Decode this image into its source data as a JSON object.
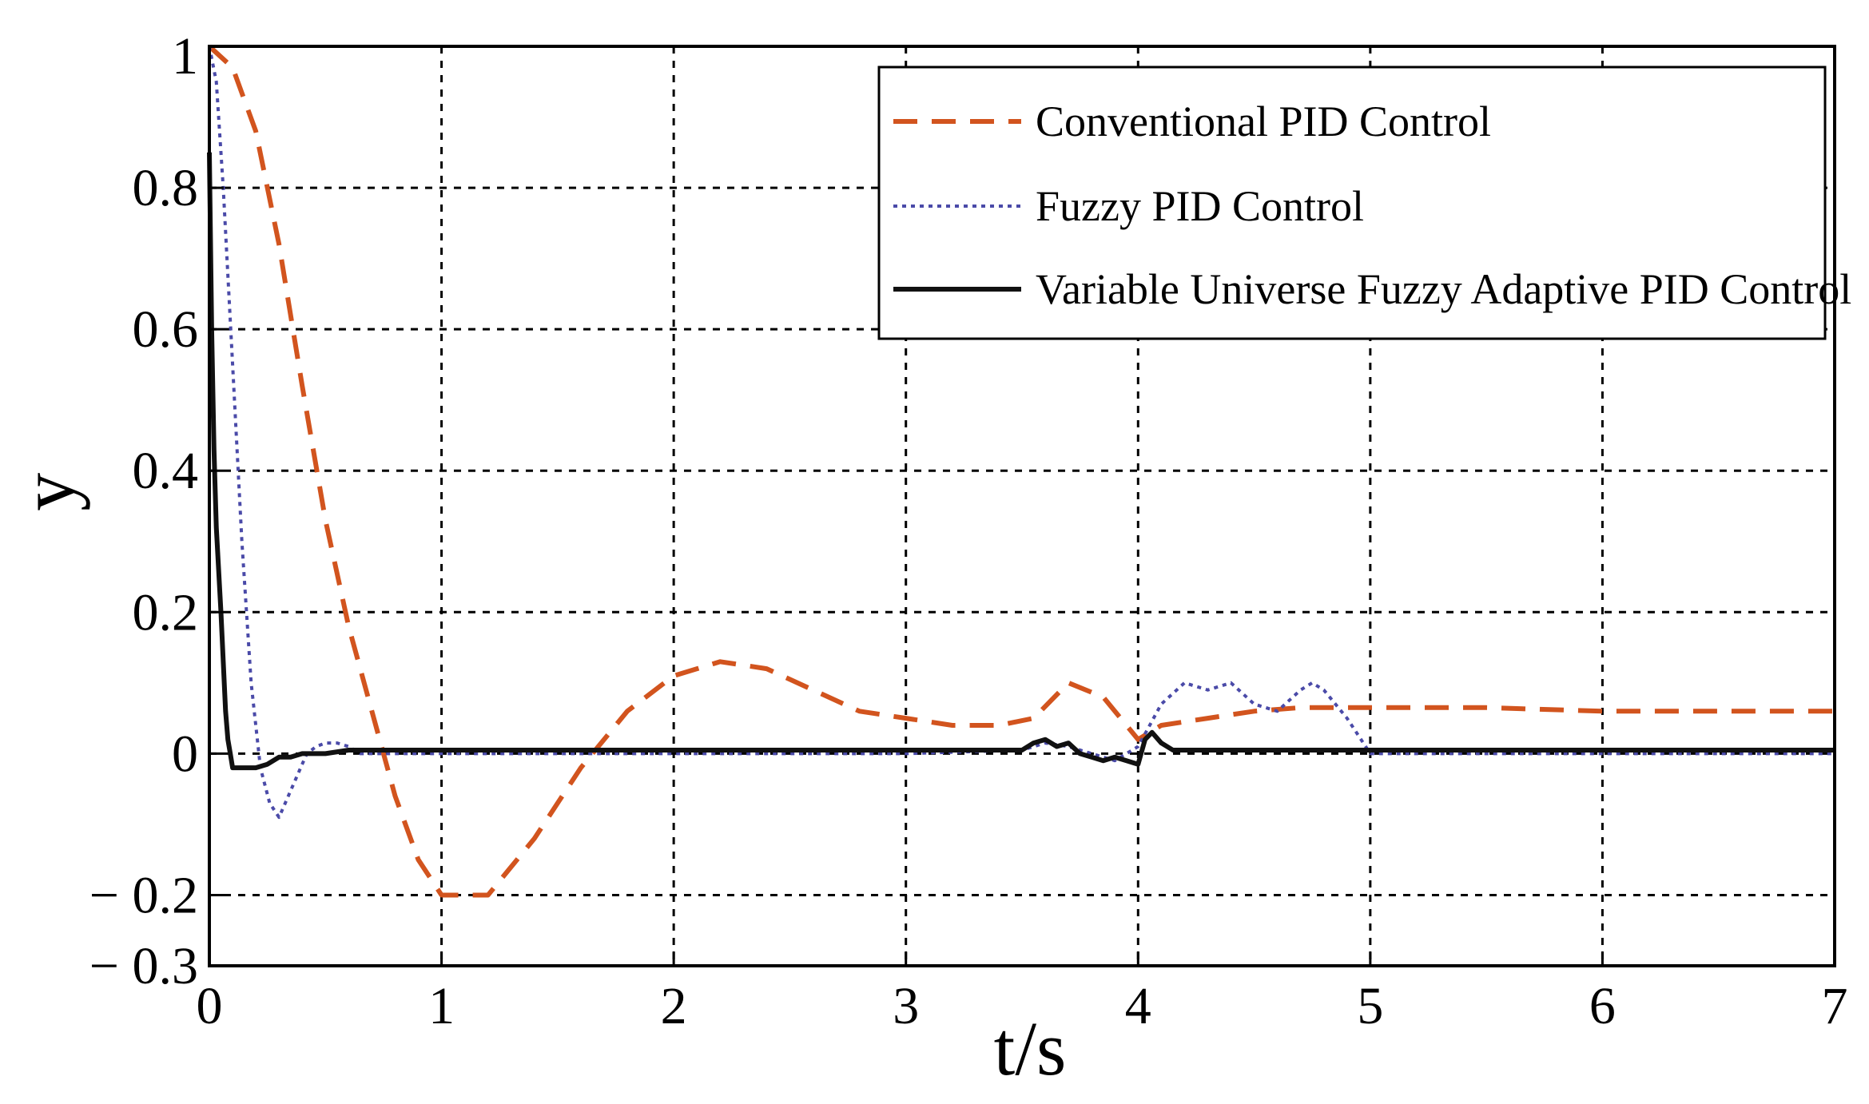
{
  "chart_data": {
    "type": "line",
    "xlabel": "t/s",
    "ylabel": "y",
    "xlim": [
      0,
      7
    ],
    "ylim": [
      -0.3,
      1
    ],
    "xticks": [
      0,
      1,
      2,
      3,
      4,
      5,
      6,
      7
    ],
    "xtick_labels": [
      "0",
      "1",
      "2",
      "3",
      "4",
      "5",
      "6",
      "7"
    ],
    "yticks": [
      -0.3,
      -0.2,
      0,
      0.2,
      0.4,
      0.6,
      0.8,
      1
    ],
    "ytick_labels": [
      "− 0.3",
      "− 0.2",
      "0",
      "0.2",
      "0.4",
      "0.6",
      "0.8",
      "1"
    ],
    "grid": true,
    "legend_position": "top-right",
    "series": [
      {
        "name": "Conventional PID Control",
        "color": "#d2541e",
        "style": "dashed",
        "x": [
          0,
          0.1,
          0.2,
          0.3,
          0.4,
          0.5,
          0.6,
          0.7,
          0.8,
          0.9,
          1.0,
          1.1,
          1.2,
          1.4,
          1.6,
          1.8,
          2.0,
          2.2,
          2.4,
          2.6,
          2.8,
          3.0,
          3.2,
          3.4,
          3.55,
          3.7,
          3.85,
          4.0,
          4.1,
          4.3,
          4.5,
          4.7,
          5.0,
          5.5,
          6.0,
          6.5,
          7.0
        ],
        "values": [
          1.0,
          0.97,
          0.88,
          0.72,
          0.52,
          0.33,
          0.18,
          0.06,
          -0.06,
          -0.15,
          -0.2,
          -0.2,
          -0.2,
          -0.12,
          -0.02,
          0.06,
          0.11,
          0.13,
          0.12,
          0.09,
          0.06,
          0.05,
          0.04,
          0.04,
          0.05,
          0.1,
          0.08,
          0.02,
          0.04,
          0.05,
          0.06,
          0.065,
          0.065,
          0.065,
          0.06,
          0.06,
          0.06
        ]
      },
      {
        "name": "Fuzzy PID Control",
        "color": "#4a4aa8",
        "style": "dotted",
        "x": [
          0,
          0.03,
          0.06,
          0.1,
          0.14,
          0.18,
          0.22,
          0.26,
          0.3,
          0.34,
          0.38,
          0.42,
          0.46,
          0.5,
          0.55,
          0.6,
          0.65,
          0.7,
          1.0,
          2.0,
          3.0,
          3.5,
          3.6,
          3.7,
          3.8,
          3.9,
          4.0,
          4.05,
          4.1,
          4.2,
          4.3,
          4.4,
          4.5,
          4.6,
          4.7,
          4.75,
          4.8,
          4.9,
          5.0,
          5.5,
          6.0,
          7.0
        ],
        "values": [
          1.0,
          0.95,
          0.8,
          0.55,
          0.3,
          0.1,
          -0.02,
          -0.07,
          -0.09,
          -0.06,
          -0.03,
          0.0,
          0.01,
          0.015,
          0.015,
          0.01,
          0.0,
          0.0,
          0.0,
          0.0,
          0.0,
          0.005,
          0.015,
          0.01,
          0.0,
          -0.01,
          0.01,
          0.04,
          0.07,
          0.1,
          0.09,
          0.1,
          0.07,
          0.06,
          0.09,
          0.1,
          0.09,
          0.05,
          0.0,
          0.0,
          0.0,
          0.0
        ]
      },
      {
        "name": "Variable Universe Fuzzy Adaptive PID Control",
        "color": "#111111",
        "style": "solid",
        "x": [
          0,
          0.01,
          0.02,
          0.03,
          0.04,
          0.05,
          0.06,
          0.07,
          0.08,
          0.09,
          0.1,
          0.15,
          0.2,
          0.25,
          0.3,
          0.35,
          0.4,
          0.5,
          0.6,
          1.0,
          2.0,
          3.0,
          3.5,
          3.55,
          3.6,
          3.65,
          3.7,
          3.75,
          3.8,
          3.85,
          3.9,
          3.95,
          4.0,
          4.03,
          4.06,
          4.1,
          4.15,
          4.2,
          4.5,
          5.0,
          6.0,
          7.0
        ],
        "values": [
          0.85,
          0.6,
          0.43,
          0.32,
          0.26,
          0.2,
          0.13,
          0.06,
          0.02,
          0.0,
          -0.02,
          -0.02,
          -0.02,
          -0.015,
          -0.005,
          -0.005,
          0.0,
          0.0,
          0.005,
          0.005,
          0.005,
          0.005,
          0.005,
          0.015,
          0.02,
          0.01,
          0.015,
          0.0,
          -0.005,
          -0.01,
          -0.005,
          -0.01,
          -0.015,
          0.02,
          0.03,
          0.015,
          0.005,
          0.005,
          0.005,
          0.005,
          0.005,
          0.005
        ]
      }
    ]
  }
}
